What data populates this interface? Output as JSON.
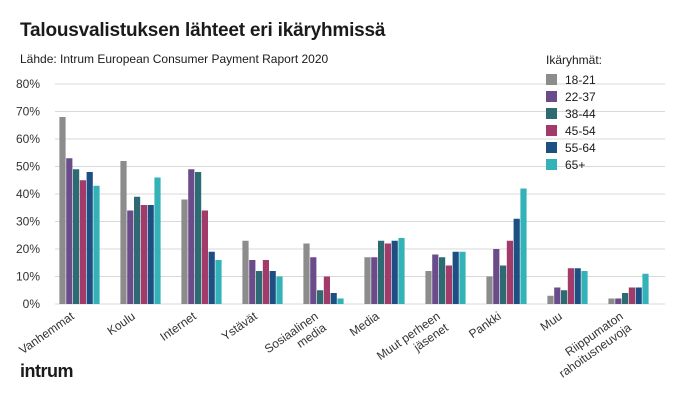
{
  "header": {
    "title": "Talousvalistuksen lähteet eri ikäryhmissä",
    "source": "Lähde:  Intrum European Consumer Payment Raport 2020"
  },
  "brand": {
    "logo_text": "intrum"
  },
  "colors": {
    "18-21": "#8c8c8c",
    "22-37": "#6b4c8a",
    "38-44": "#2c6b72",
    "45-54": "#a23a6a",
    "55-64": "#1e4f82",
    "65+": "#33b3b8",
    "grid": "#d9d9d9",
    "axis_text": "#333333"
  },
  "chart_data": {
    "type": "bar",
    "title": "Talousvalistuksen lähteet eri ikäryhmissä",
    "ylim": [
      0,
      80
    ],
    "yticks": [
      "0%",
      "10%",
      "20%",
      "30%",
      "40%",
      "50%",
      "60%",
      "70%",
      "80%"
    ],
    "grid": true,
    "legend_title": "Ikäryhmät:",
    "legend_position": "top-right",
    "categories": [
      [
        "Vanhemmat"
      ],
      [
        "Koulu"
      ],
      [
        "Internet"
      ],
      [
        "Ystävät"
      ],
      [
        "Sosiaalinen",
        "media"
      ],
      [
        "Media"
      ],
      [
        "Muut perheen",
        "jäsenet"
      ],
      [
        "Pankki"
      ],
      [
        "Muu"
      ],
      [
        "Riippumaton",
        "rahoitusneuvoja"
      ]
    ],
    "series": [
      {
        "name": "18-21",
        "values": [
          68,
          52,
          38,
          23,
          22,
          17,
          12,
          10,
          3,
          2
        ]
      },
      {
        "name": "22-37",
        "values": [
          53,
          34,
          49,
          16,
          17,
          17,
          18,
          20,
          6,
          2
        ]
      },
      {
        "name": "38-44",
        "values": [
          49,
          39,
          48,
          12,
          5,
          23,
          17,
          14,
          5,
          4
        ]
      },
      {
        "name": "45-54",
        "values": [
          45,
          36,
          34,
          16,
          10,
          22,
          14,
          23,
          13,
          6
        ]
      },
      {
        "name": "55-64",
        "values": [
          48,
          36,
          19,
          12,
          4,
          23,
          19,
          31,
          13,
          6
        ]
      },
      {
        "name": "65+",
        "values": [
          43,
          46,
          16,
          10,
          2,
          24,
          19,
          42,
          12,
          11
        ]
      }
    ]
  }
}
